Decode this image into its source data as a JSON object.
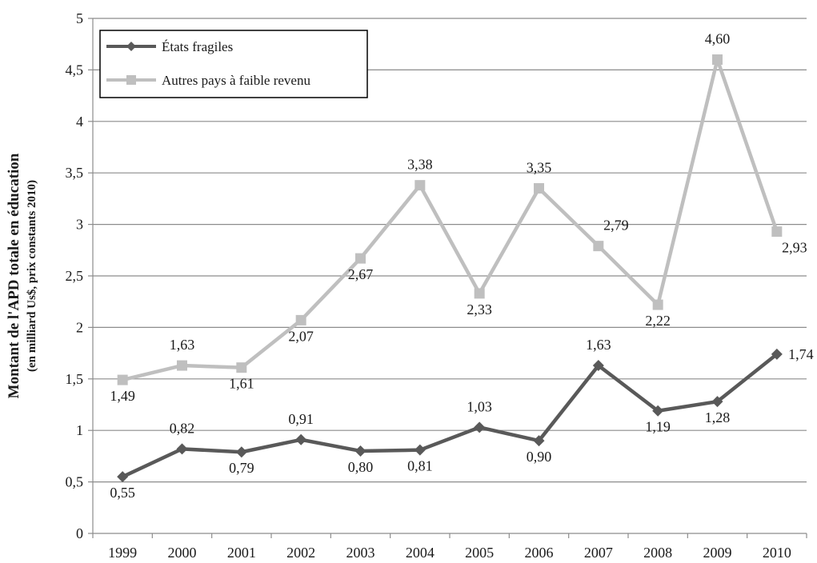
{
  "chart_data": {
    "type": "line",
    "categories": [
      "1999",
      "2000",
      "2001",
      "2002",
      "2003",
      "2004",
      "2005",
      "2006",
      "2007",
      "2008",
      "2009",
      "2010"
    ],
    "series": [
      {
        "name": "États fragiles",
        "color": "#595959",
        "marker": "diamond",
        "values": [
          0.55,
          0.82,
          0.79,
          0.91,
          0.8,
          0.81,
          1.03,
          0.9,
          1.63,
          1.19,
          1.28,
          1.74
        ],
        "labels": [
          "0,55",
          "0,82",
          "0,79",
          "0,91",
          "0,80",
          "0,81",
          "1,03",
          "0,90",
          "1,63",
          "1,19",
          "1,28",
          "1,74"
        ]
      },
      {
        "name": "Autres pays à faible revenu",
        "color": "#bfbfbf",
        "marker": "square",
        "values": [
          1.49,
          1.63,
          1.61,
          2.07,
          2.67,
          3.38,
          2.33,
          3.35,
          2.79,
          2.22,
          4.6,
          2.93
        ],
        "labels": [
          "1,49",
          "1,63",
          "1,61",
          "2,07",
          "2,67",
          "3,38",
          "2,33",
          "3,35",
          "2,79",
          "2,22",
          "4,60",
          "2,93"
        ]
      }
    ],
    "ylim": [
      0,
      5
    ],
    "yticks": [
      0,
      0.5,
      1,
      1.5,
      2,
      2.5,
      3,
      3.5,
      4,
      4.5,
      5
    ],
    "ytick_labels": [
      "0",
      "0,5",
      "1",
      "1,5",
      "2",
      "2,5",
      "3",
      "3,5",
      "4",
      "4,5",
      "5"
    ],
    "ylabel": "Montant de l'APD totale en éducation",
    "ylabel_sub": "(en milliard Us$, prix constants 2010)",
    "xlabel": "",
    "title": "",
    "grid": true,
    "legend_position": "top-left"
  }
}
